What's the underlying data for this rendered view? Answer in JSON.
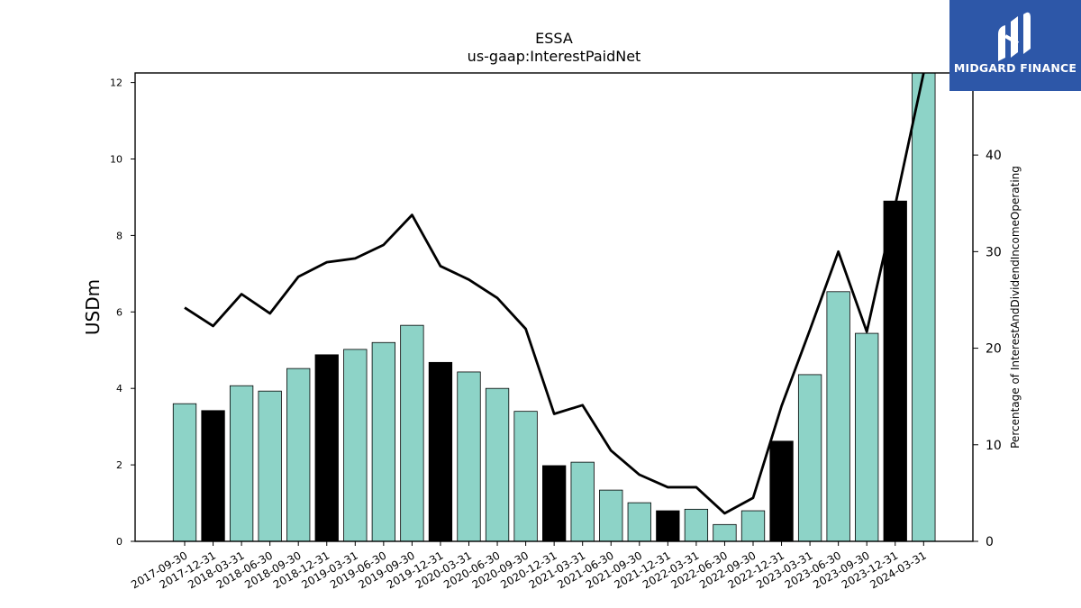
{
  "chart_data": {
    "type": "bar",
    "title": "ESSA",
    "subtitle": "us-gaap:InterestPaidNet",
    "ylabel": "USDm",
    "y2label": "Percentage of InterestAndDividendIncomeOperating",
    "ylim": [
      0,
      12.25
    ],
    "y2lim": [
      0,
      48.5
    ],
    "yticks": [
      0,
      2,
      4,
      6,
      8,
      10,
      12
    ],
    "y2ticks": [
      0,
      10,
      20,
      30,
      40
    ],
    "categories": [
      "2017-09-30",
      "2017-12-31",
      "2018-03-31",
      "2018-06-30",
      "2018-09-30",
      "2018-12-31",
      "2019-03-31",
      "2019-06-30",
      "2019-09-30",
      "2019-12-31",
      "2020-03-31",
      "2020-06-30",
      "2020-09-30",
      "2020-12-31",
      "2021-03-31",
      "2021-06-30",
      "2021-09-30",
      "2021-12-31",
      "2022-03-31",
      "2022-06-30",
      "2022-09-30",
      "2022-12-31",
      "2023-03-31",
      "2023-06-30",
      "2023-09-30",
      "2023-12-31",
      "2024-03-31"
    ],
    "values": [
      3.6,
      3.42,
      4.07,
      3.93,
      4.52,
      4.88,
      5.02,
      5.2,
      5.65,
      4.68,
      4.43,
      4.0,
      3.4,
      1.98,
      2.07,
      1.34,
      1.01,
      0.8,
      0.84,
      0.44,
      0.8,
      2.62,
      4.36,
      6.53,
      5.44,
      8.9,
      12.3
    ],
    "highlight": [
      false,
      true,
      false,
      false,
      false,
      true,
      false,
      false,
      false,
      true,
      false,
      false,
      false,
      true,
      false,
      false,
      false,
      true,
      false,
      false,
      false,
      true,
      false,
      false,
      false,
      true,
      false
    ],
    "line_values": [
      24.2,
      22.3,
      25.6,
      23.6,
      27.4,
      28.9,
      29.3,
      30.7,
      33.8,
      28.5,
      27.1,
      25.2,
      22.0,
      13.2,
      14.1,
      9.4,
      6.9,
      5.6,
      5.6,
      2.9,
      4.5,
      14.0,
      21.9,
      30.0,
      21.7,
      34.8,
      48.5
    ],
    "colors": {
      "bar": "#8dd3c7",
      "highlight": "#000000",
      "line": "#000000",
      "edge": "#000000"
    },
    "grid": false
  },
  "logo": {
    "text": "MIDGARD FINANCE",
    "bg": "#2d57a8"
  }
}
